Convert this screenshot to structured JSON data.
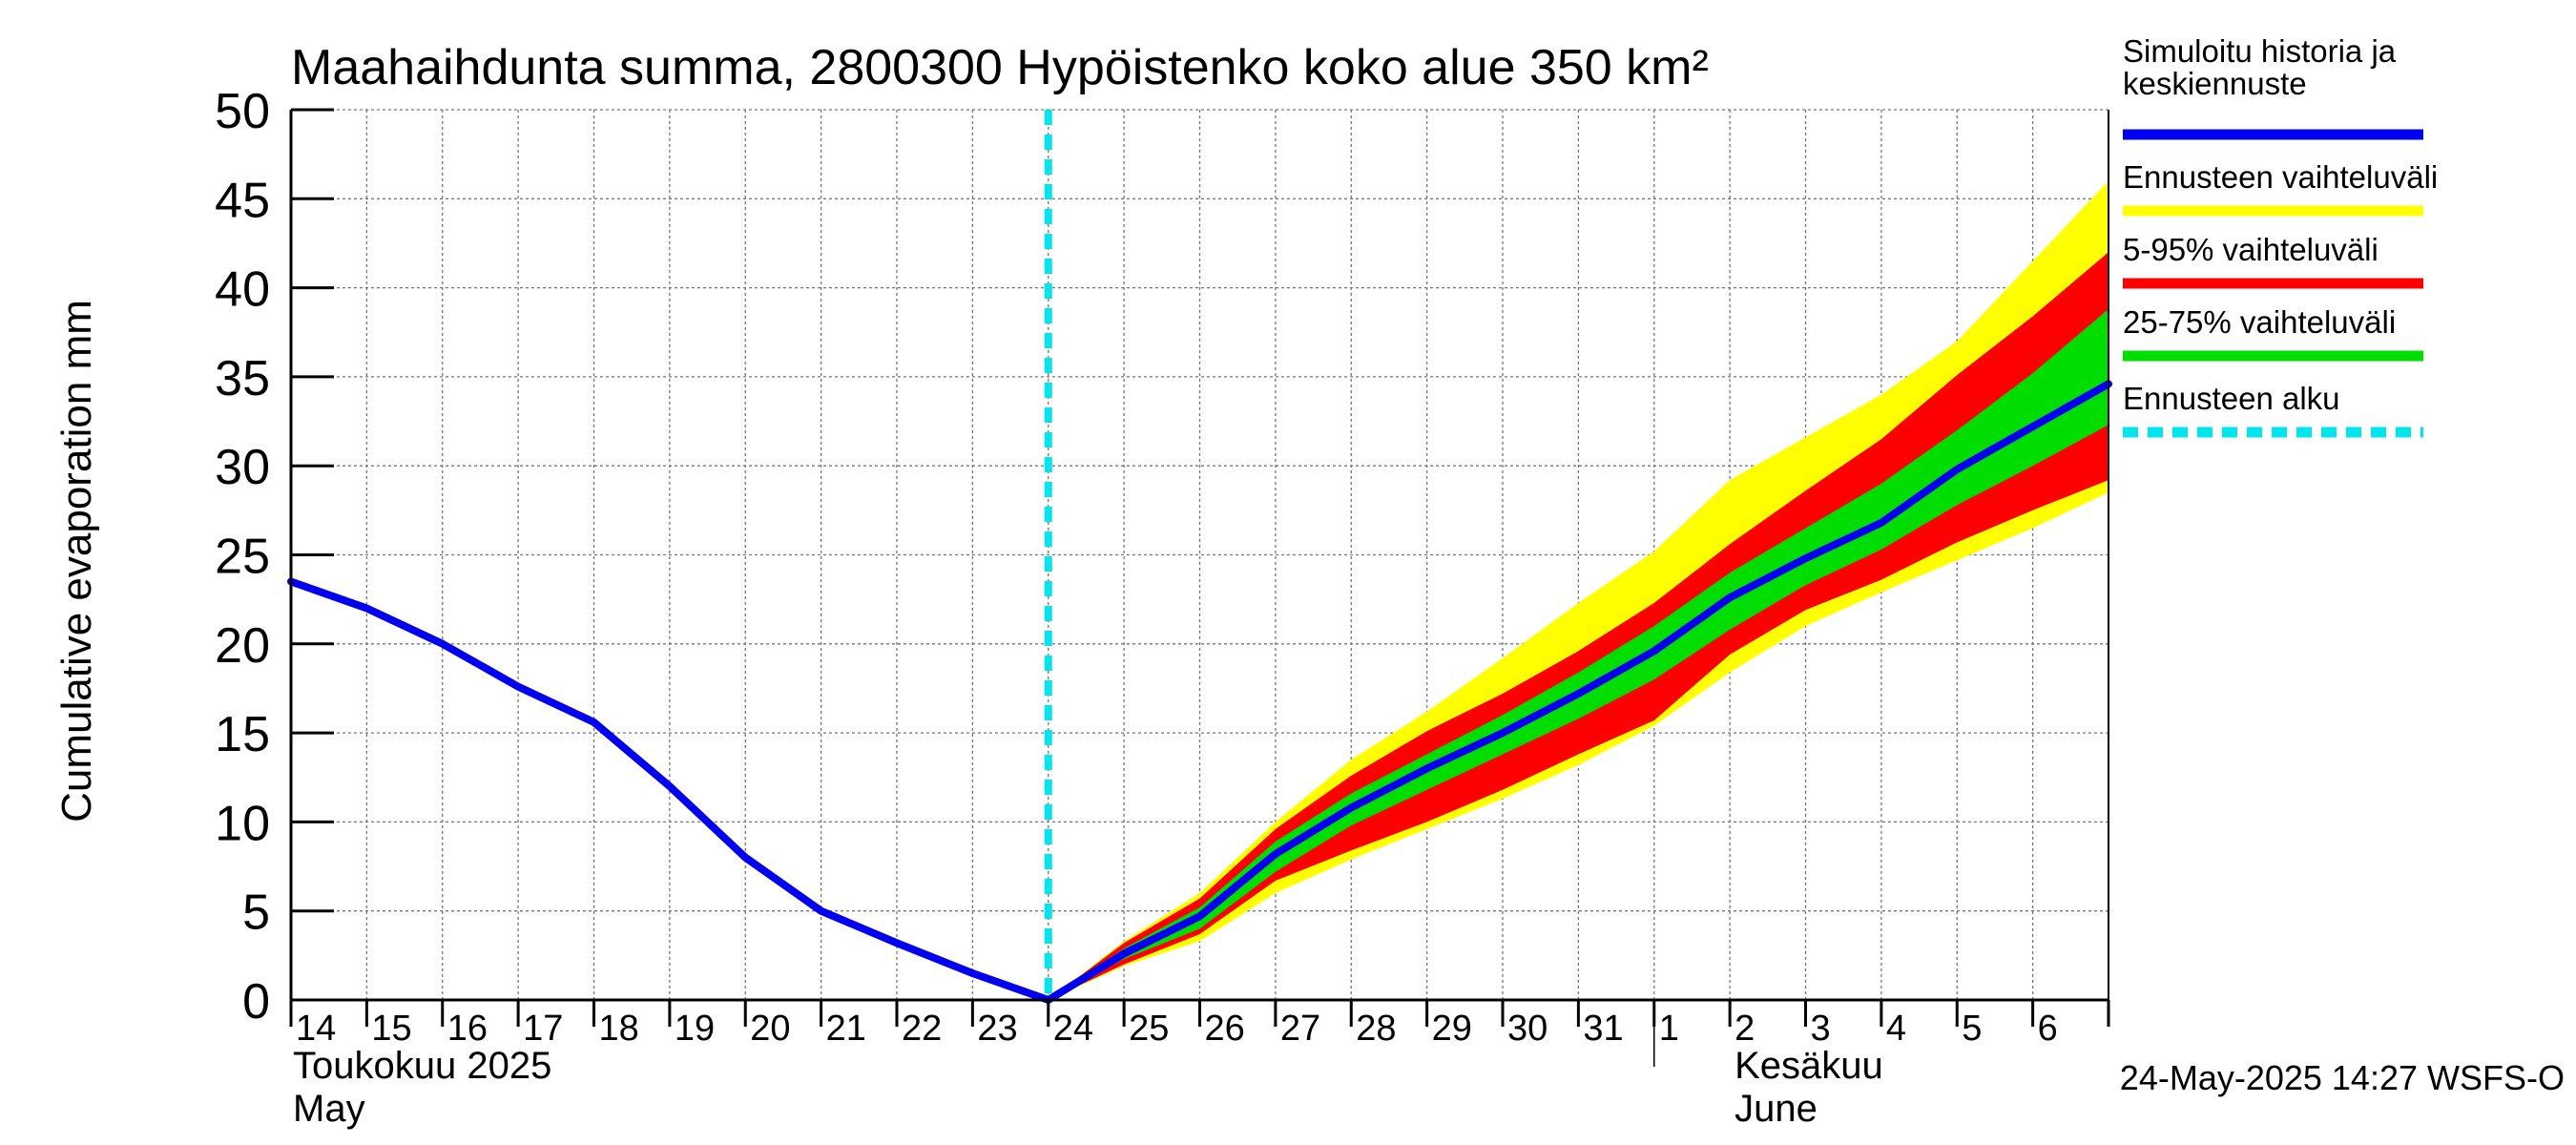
{
  "chart_data": {
    "type": "area",
    "title": "Maahaihdunta summa, 2800300 Hypöistenko koko alue 350 km²",
    "ylabel": "Cumulative evaporation   mm",
    "ylim": [
      0,
      50
    ],
    "yticks": [
      0,
      5,
      10,
      15,
      20,
      25,
      30,
      35,
      40,
      45,
      50
    ],
    "grid": true,
    "legend_placement": "right",
    "x_day_labels": [
      "14",
      "15",
      "16",
      "17",
      "18",
      "19",
      "20",
      "21",
      "22",
      "23",
      "24",
      "25",
      "26",
      "27",
      "28",
      "29",
      "30",
      "31",
      "1",
      "2",
      "3",
      "4",
      "5",
      "6"
    ],
    "x_month_labels": [
      {
        "line1": "Toukokuu  2025",
        "line2": "May"
      },
      {
        "line1": "Kesäkuu",
        "line2": "June"
      }
    ],
    "forecast_start": "2025-05-24",
    "timestamp": "24-May-2025 14:27 WSFS-O",
    "colors": {
      "history": "#0000ee",
      "full_range": "#ffff00",
      "range_5_95": "#ff0000",
      "range_25_75": "#00dd00",
      "forecast_start": "#00e5ee"
    },
    "legend": [
      {
        "label": "Simuloitu historia ja",
        "label2": "keskiennuste",
        "color": "#0000ee",
        "style": "solid"
      },
      {
        "label": "Ennusteen vaihteluväli",
        "color": "#ffff00",
        "style": "solid"
      },
      {
        "label": "5-95% vaihteluväli",
        "color": "#ff0000",
        "style": "solid"
      },
      {
        "label": "25-75% vaihteluväli",
        "color": "#00dd00",
        "style": "solid"
      },
      {
        "label": "Ennusteen alku",
        "color": "#00e5ee",
        "style": "dashed"
      }
    ],
    "history": {
      "x": [
        "2025-05-14",
        "2025-05-15",
        "2025-05-16",
        "2025-05-17",
        "2025-05-18",
        "2025-05-19",
        "2025-05-20",
        "2025-05-21",
        "2025-05-22",
        "2025-05-23",
        "2025-05-24"
      ],
      "y": [
        23.5,
        22.0,
        20.0,
        17.6,
        15.6,
        12.0,
        8.0,
        5.0,
        3.2,
        1.5,
        0.0
      ]
    },
    "forecast": {
      "x": [
        "2025-05-24",
        "2025-05-25",
        "2025-05-26",
        "2025-05-27",
        "2025-05-28",
        "2025-05-29",
        "2025-05-30",
        "2025-05-31",
        "2025-06-01",
        "2025-06-02",
        "2025-06-03",
        "2025-06-04",
        "2025-06-05",
        "2025-06-06",
        "2025-06-07"
      ],
      "median": [
        0.0,
        2.6,
        4.7,
        8.2,
        10.8,
        13.0,
        15.0,
        17.2,
        19.6,
        22.6,
        24.8,
        26.8,
        29.8,
        32.2,
        34.6
      ],
      "p25": [
        0.0,
        2.3,
        4.0,
        7.2,
        9.8,
        11.8,
        13.8,
        15.8,
        18.0,
        20.8,
        23.3,
        25.3,
        27.8,
        30.0,
        32.3
      ],
      "p75": [
        0.0,
        2.9,
        5.2,
        8.9,
        11.6,
        13.8,
        16.0,
        18.4,
        21.0,
        24.0,
        26.5,
        29.0,
        32.0,
        35.2,
        38.8
      ],
      "p5": [
        0.0,
        2.0,
        3.7,
        6.7,
        8.4,
        10.0,
        11.8,
        13.8,
        15.7,
        19.4,
        21.9,
        23.6,
        25.7,
        27.5,
        29.2
      ],
      "p95": [
        0.0,
        3.2,
        5.7,
        9.6,
        12.6,
        15.1,
        17.2,
        19.6,
        22.3,
        25.6,
        28.6,
        31.5,
        35.1,
        38.4,
        42.0
      ],
      "min": [
        0.0,
        1.9,
        3.3,
        6.0,
        7.9,
        9.6,
        11.3,
        13.2,
        15.4,
        18.4,
        21.0,
        22.9,
        24.7,
        26.5,
        28.5
      ],
      "max": [
        0.0,
        3.3,
        6.0,
        10.0,
        13.5,
        16.2,
        19.2,
        22.3,
        25.2,
        29.2,
        31.6,
        34.0,
        37.0,
        41.5,
        46.0
      ]
    }
  }
}
